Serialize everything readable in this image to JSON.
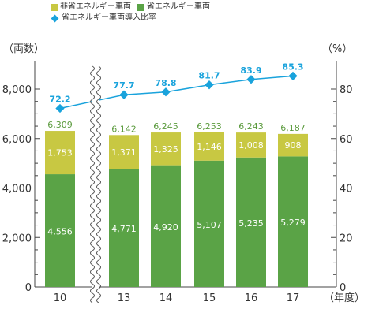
{
  "colors": {
    "non_eco": "#c8c842",
    "eco": "#5aa346",
    "ratio": "#1aa3dc",
    "axis": "#444444",
    "total_label": "#5a9a3c"
  },
  "legend": {
    "non_eco_label": "非省エネルギー車両",
    "eco_label": "省エネルギー車両",
    "ratio_label": "省エネルギー車両導入比率"
  },
  "chart_data": {
    "type": "bar",
    "stacked": true,
    "categories": [
      "10",
      "13",
      "14",
      "15",
      "16",
      "17"
    ],
    "axis_break_after_index": 0,
    "series": [
      {
        "name": "省エネルギー車両",
        "values": [
          4556,
          4771,
          4920,
          5107,
          5235,
          5279
        ]
      },
      {
        "name": "非省エネルギー車両",
        "values": [
          1753,
          1371,
          1325,
          1146,
          1008,
          908
        ]
      }
    ],
    "totals": [
      6309,
      6142,
      6245,
      6253,
      6243,
      6187
    ],
    "line_series": {
      "name": "省エネルギー車両導入比率",
      "values": [
        72.2,
        77.7,
        78.8,
        81.7,
        83.9,
        85.3
      ],
      "axis": "right"
    },
    "ylabel_left": "（両数）",
    "ylabel_right": "（%）",
    "xlabel": "（年度）",
    "ylim": [
      0,
      8000
    ],
    "y2lim": [
      0,
      80
    ],
    "yticks": [
      "0",
      "2,000",
      "4,000",
      "6,000",
      "8,000"
    ],
    "y2ticks": [
      "0",
      "20",
      "40",
      "60",
      "80"
    ],
    "grid": false,
    "legend_position": "top-left"
  }
}
